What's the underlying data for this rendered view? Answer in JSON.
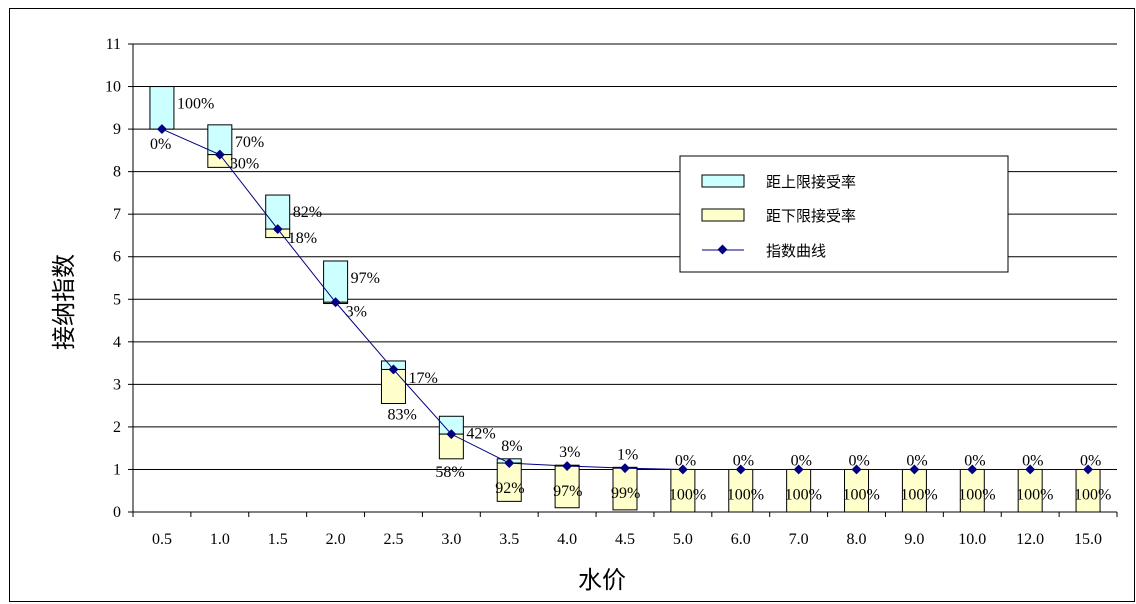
{
  "chart_data": {
    "type": "bar",
    "categories": [
      "0.5",
      "1.0",
      "1.5",
      "2.0",
      "2.5",
      "3.0",
      "3.5",
      "4.0",
      "4.5",
      "5.0",
      "6.0",
      "7.0",
      "8.0",
      "9.0",
      "10.0",
      "12.0",
      "15.0"
    ],
    "xlabel": "水价",
    "ylabel": "接纳指数",
    "ylim": [
      0,
      11
    ],
    "yticks": [
      "0",
      "1",
      "2",
      "3",
      "4",
      "5",
      "6",
      "7",
      "8",
      "9",
      "10",
      "11"
    ],
    "grid": true,
    "legend_position": "right",
    "series": [
      {
        "name": "距上限接受率",
        "color": "#ccffff",
        "top": [
          10.0,
          9.1,
          7.45,
          5.9,
          3.55,
          2.25,
          1.25,
          1.1,
          1.05,
          1.0,
          1.0,
          1.0,
          1.0,
          1.0,
          1.0,
          1.0,
          1.0
        ],
        "labels": [
          "100%",
          "70%",
          "82%",
          "97%",
          "17%",
          "42%",
          "8%",
          "3%",
          "1%",
          "0%",
          "0%",
          "0%",
          "0%",
          "0%",
          "0%",
          "0%",
          "0%"
        ]
      },
      {
        "name": "距下限接受率",
        "color": "#ffffcc",
        "bottom": [
          9.0,
          8.1,
          6.45,
          4.9,
          2.55,
          1.25,
          0.25,
          0.1,
          0.05,
          0.0,
          0.0,
          0.0,
          0.0,
          0.0,
          0.0,
          0.0,
          0.0
        ],
        "labels": [
          "0%",
          "30%",
          "18%",
          "3%",
          "83%",
          "58%",
          "92%",
          "97%",
          "99%",
          "100%",
          "100%",
          "100%",
          "100%",
          "100%",
          "100%",
          "100%",
          "100%"
        ]
      },
      {
        "name": "指数曲线",
        "color": "#000080",
        "values": [
          9.0,
          8.4,
          6.65,
          4.93,
          3.35,
          1.83,
          1.15,
          1.08,
          1.03,
          1.0,
          1.0,
          1.0,
          1.0,
          1.0,
          1.0,
          1.0,
          1.0
        ]
      }
    ]
  }
}
